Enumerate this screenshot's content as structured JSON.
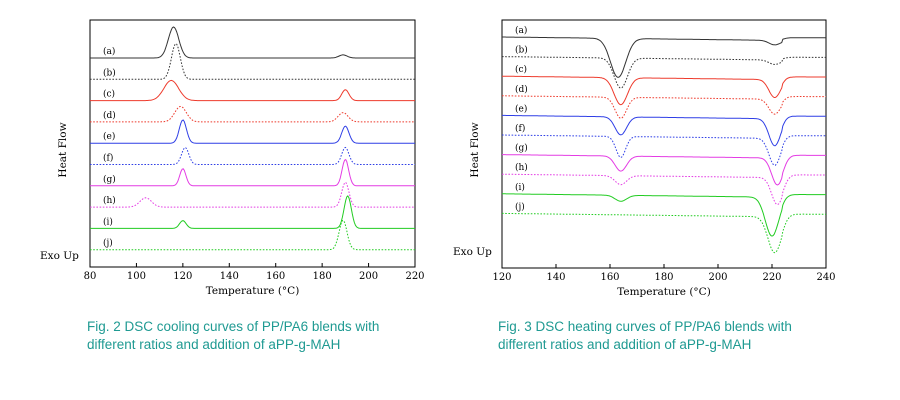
{
  "colors": {
    "a": "#333333",
    "b": "#333333",
    "c": "#ee3b2d",
    "d": "#ee3b2d",
    "e": "#2f3fe6",
    "f": "#2f3fe6",
    "g": "#e43ce4",
    "h": "#e43ce4",
    "i": "#22cc22",
    "j": "#22cc22",
    "caption": "#1f9a92"
  },
  "chart_data": [
    {
      "type": "line",
      "caption": "Fig. 2 DSC cooling curves of PP/PA6 blends with\ndifferent ratios and addition of aPP-g-MAH",
      "xlabel": "Temperature (°C)",
      "ylabel": "Heat Flow",
      "corner_label": "Exo Up",
      "xlim": [
        80,
        220
      ],
      "xticks": [
        "80",
        "100",
        "120",
        "140",
        "160",
        "180",
        "200",
        "220"
      ],
      "series": [
        {
          "name": "(a)",
          "style": "solid",
          "peaks": [
            {
              "x": 116,
              "h": 1.0,
              "w": 3.2
            },
            {
              "x": 189,
              "h": 0.1,
              "w": 2.5
            }
          ]
        },
        {
          "name": "(b)",
          "style": "dotted",
          "peaks": [
            {
              "x": 117,
              "h": 1.15,
              "w": 2.7
            }
          ]
        },
        {
          "name": "(c)",
          "style": "solid",
          "peaks": [
            {
              "x": 115,
              "h": 0.65,
              "w": 4.5
            },
            {
              "x": 190,
              "h": 0.35,
              "w": 2.2
            }
          ]
        },
        {
          "name": "(d)",
          "style": "dotted",
          "peaks": [
            {
              "x": 119,
              "h": 0.5,
              "w": 3.5
            },
            {
              "x": 189,
              "h": 0.3,
              "w": 3
            }
          ]
        },
        {
          "name": "(e)",
          "style": "solid",
          "peaks": [
            {
              "x": 120,
              "h": 0.75,
              "w": 2.2
            },
            {
              "x": 190,
              "h": 0.55,
              "w": 2.2
            }
          ]
        },
        {
          "name": "(f)",
          "style": "dotted",
          "peaks": [
            {
              "x": 121,
              "h": 0.55,
              "w": 2.2
            },
            {
              "x": 190,
              "h": 0.55,
              "w": 2.2
            }
          ]
        },
        {
          "name": "(g)",
          "style": "solid",
          "peaks": [
            {
              "x": 120,
              "h": 0.55,
              "w": 1.9
            },
            {
              "x": 190,
              "h": 0.85,
              "w": 2.0
            }
          ]
        },
        {
          "name": "(h)",
          "style": "dotted",
          "peaks": [
            {
              "x": 104,
              "h": 0.3,
              "w": 3.5
            },
            {
              "x": 190,
              "h": 0.8,
              "w": 2.2
            }
          ]
        },
        {
          "name": "(i)",
          "style": "solid",
          "peaks": [
            {
              "x": 120,
              "h": 0.25,
              "w": 2.0
            },
            {
              "x": 191,
              "h": 1.05,
              "w": 2.2
            }
          ]
        },
        {
          "name": "(j)",
          "style": "dotted",
          "peaks": [
            {
              "x": 189,
              "h": 0.95,
              "w": 2.4
            }
          ]
        }
      ]
    },
    {
      "type": "line",
      "caption": "Fig. 3 DSC heating curves of PP/PA6 blends with\ndifferent ratios and addition of aPP-g-MAH",
      "xlabel": "Temperature (°C)",
      "ylabel": "Heat Flow",
      "corner_label": "Exo Up",
      "xlim": [
        120,
        240
      ],
      "xticks": [
        "120",
        "140",
        "160",
        "180",
        "200",
        "220",
        "240"
      ],
      "series": [
        {
          "name": "(a)",
          "style": "solid",
          "dips": [
            {
              "x": 163,
              "h": 1.3,
              "w": 4
            },
            {
              "x": 221,
              "h": 0.15,
              "w": 3
            }
          ]
        },
        {
          "name": "(b)",
          "style": "dotted",
          "dips": [
            {
              "x": 164,
              "h": 1.0,
              "w": 3.5
            },
            {
              "x": 221,
              "h": 0.15,
              "w": 3
            }
          ]
        },
        {
          "name": "(c)",
          "style": "solid",
          "dips": [
            {
              "x": 164,
              "h": 0.9,
              "w": 3.5
            },
            {
              "x": 221,
              "h": 0.6,
              "w": 3
            }
          ]
        },
        {
          "name": "(d)",
          "style": "dotted",
          "dips": [
            {
              "x": 164,
              "h": 0.7,
              "w": 3
            },
            {
              "x": 221,
              "h": 0.5,
              "w": 3
            }
          ]
        },
        {
          "name": "(e)",
          "style": "solid",
          "dips": [
            {
              "x": 164,
              "h": 0.6,
              "w": 3
            },
            {
              "x": 221,
              "h": 0.9,
              "w": 3
            }
          ]
        },
        {
          "name": "(f)",
          "style": "dotted",
          "dips": [
            {
              "x": 164,
              "h": 0.7,
              "w": 2.5
            },
            {
              "x": 221,
              "h": 0.9,
              "w": 3
            }
          ]
        },
        {
          "name": "(g)",
          "style": "solid",
          "dips": [
            {
              "x": 164,
              "h": 0.5,
              "w": 3
            },
            {
              "x": 222,
              "h": 0.9,
              "w": 3
            }
          ]
        },
        {
          "name": "(h)",
          "style": "dotted",
          "dips": [
            {
              "x": 164,
              "h": 0.3,
              "w": 3
            },
            {
              "x": 222,
              "h": 0.9,
              "w": 3
            }
          ]
        },
        {
          "name": "(i)",
          "style": "solid",
          "dips": [
            {
              "x": 164,
              "h": 0.2,
              "w": 3
            },
            {
              "x": 220,
              "h": 1.3,
              "w": 3.5
            }
          ]
        },
        {
          "name": "(j)",
          "style": "dotted",
          "dips": [
            {
              "x": 221,
              "h": 1.2,
              "w": 3.5
            }
          ]
        }
      ]
    }
  ]
}
